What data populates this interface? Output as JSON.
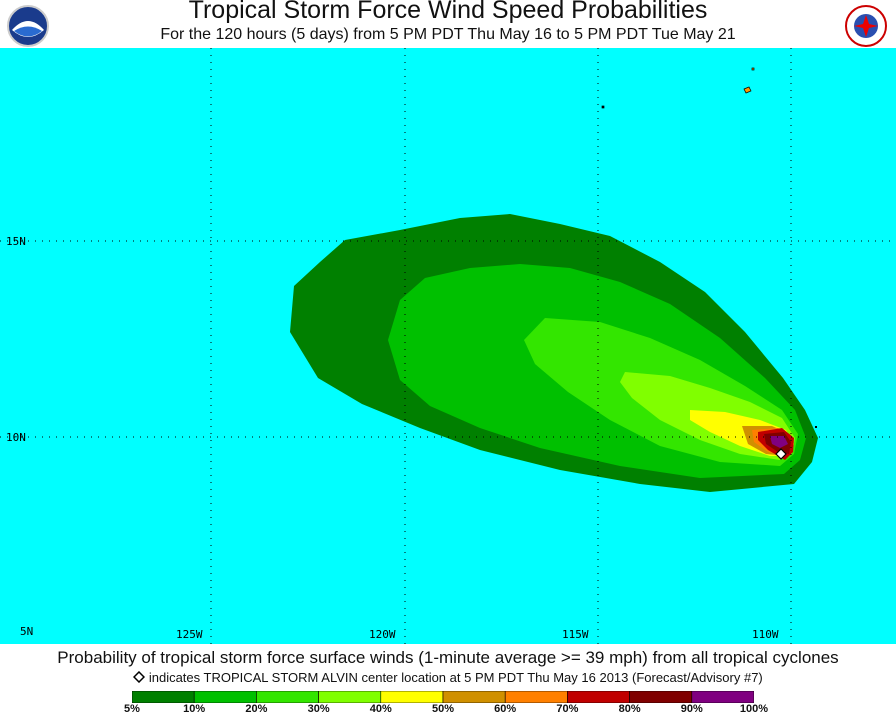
{
  "title": "Tropical Storm Force Wind Speed Probabilities",
  "subtitle": "For the 120 hours (5 days) from 5 PM PDT Thu May 16 to 5 PM PDT Tue May 21",
  "logos": {
    "left": "noaa-logo",
    "right": "nws-logo"
  },
  "map": {
    "background_color": "#00ffff",
    "lat_labels": [
      "15N",
      "10N",
      "5N"
    ],
    "lon_labels": [
      "125W",
      "120W",
      "115W",
      "110W"
    ],
    "storm_marker_icon": "diamond-icon"
  },
  "probability_description": "Probability of tropical storm force surface winds (1-minute average >= 39 mph) from all tropical cyclones",
  "storm_note": {
    "icon": "diamond-icon",
    "text": "indicates TROPICAL STORM ALVIN center location at 5 PM PDT Thu May 16 2013 (Forecast/Advisory #7)"
  },
  "legend": {
    "colors": [
      "#008000",
      "#00c000",
      "#33e600",
      "#80ff00",
      "#ffff00",
      "#d09000",
      "#ff8000",
      "#c00000",
      "#800000",
      "#800080"
    ],
    "labels": [
      "5%",
      "10%",
      "20%",
      "30%",
      "40%",
      "50%",
      "60%",
      "70%",
      "80%",
      "90%",
      "100%"
    ]
  }
}
